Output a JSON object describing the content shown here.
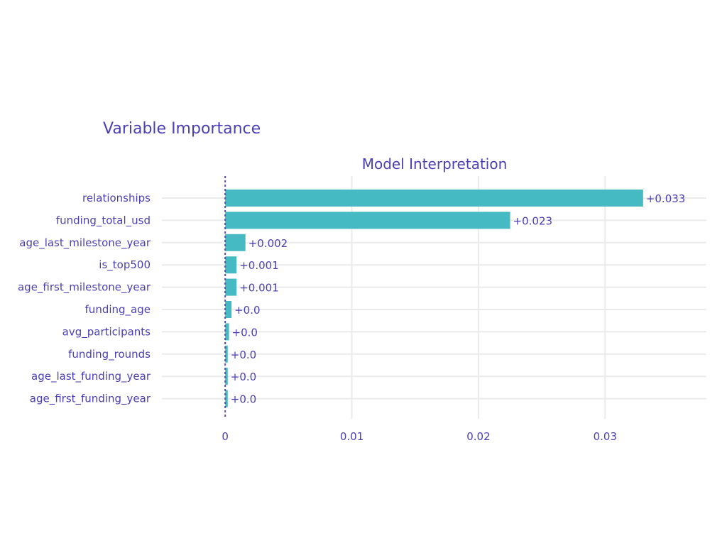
{
  "chart_data": {
    "type": "bar",
    "orientation": "horizontal",
    "title": "Variable Importance",
    "subtitle": "Model Interpretation",
    "xlabel": "",
    "ylabel": "",
    "categories": [
      "relationships",
      "funding_total_usd",
      "age_last_milestone_year",
      "is_top500",
      "age_first_milestone_year",
      "funding_age",
      "avg_participants",
      "funding_rounds",
      "age_last_funding_year",
      "age_first_funding_year"
    ],
    "values": [
      0.033,
      0.0225,
      0.0016,
      0.0009,
      0.0009,
      0.0005,
      0.0003,
      0.0002,
      0.0002,
      0.0002
    ],
    "value_labels": [
      "+0.033",
      "+0.023",
      "+0.002",
      "+0.001",
      "+0.001",
      "+0.0",
      "+0.0",
      "+0.0",
      "+0.0",
      "+0.0"
    ],
    "xlim": [
      -0.005,
      0.038
    ],
    "xticks": [
      0,
      0.01,
      0.02,
      0.03
    ],
    "xtick_labels": [
      "0",
      "0.01",
      "0.02",
      "0.03"
    ],
    "baseline": 0,
    "grid": true,
    "legend": "none",
    "colors": {
      "bar": "#46bac2",
      "text": "#4a3fb5",
      "grid": "#ebebeb",
      "baseline": "#5a4bb0"
    }
  }
}
